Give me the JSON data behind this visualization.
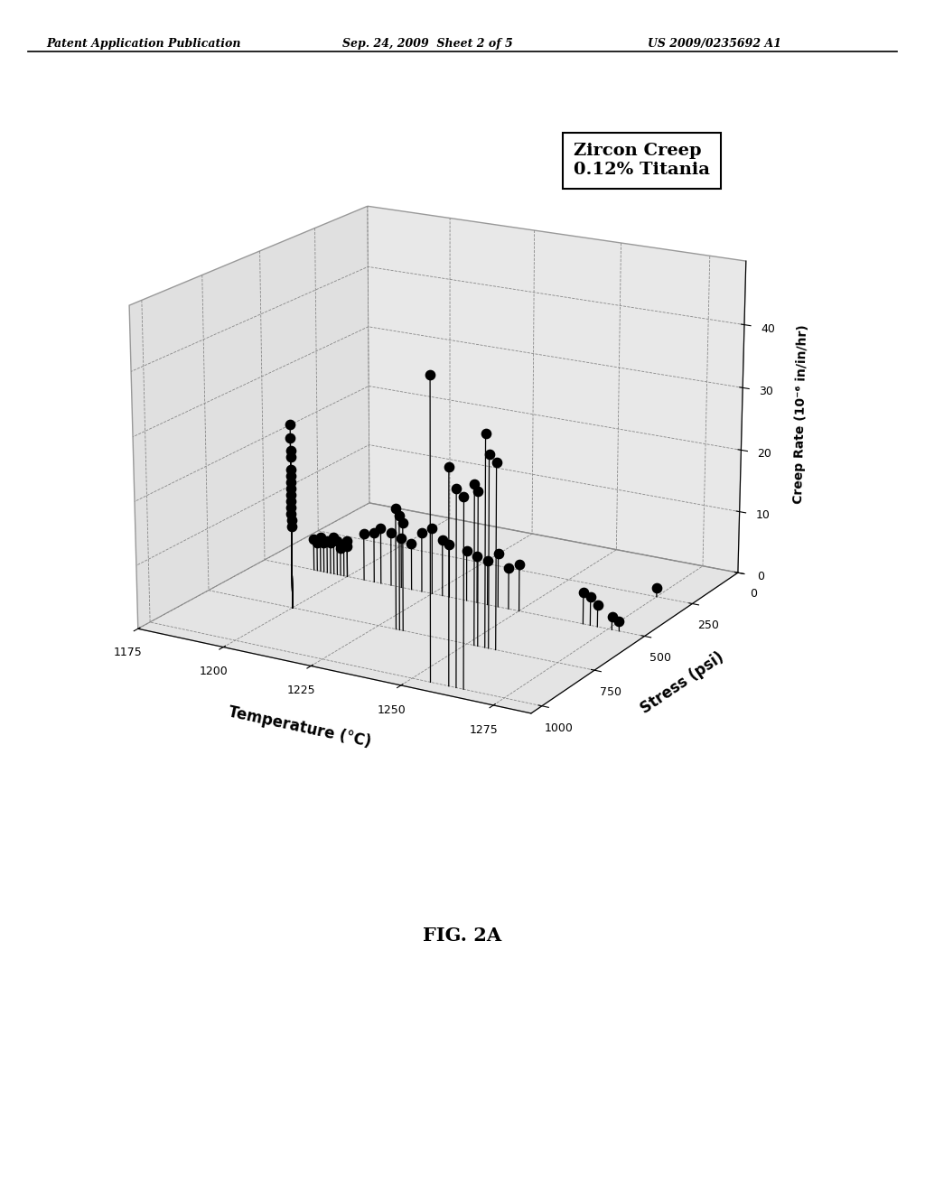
{
  "title": "Zircon Creep\n0.12% Titania",
  "xlabel": "Temperature (°C)",
  "ylabel": "Stress (psi)",
  "zlabel": "Creep Rate (10⁻⁶ in/in/hr)",
  "x_ticks": [
    1175,
    1200,
    1225,
    1250,
    1275
  ],
  "y_ticks": [
    0,
    250,
    500,
    750,
    1000
  ],
  "z_ticks": [
    0,
    10,
    20,
    30,
    40
  ],
  "xlim": [
    1175,
    1285
  ],
  "ylim": [
    0,
    1050
  ],
  "zlim": [
    0,
    50
  ],
  "data_points": [
    [
      1190,
      500,
      5.0
    ],
    [
      1191,
      500,
      4.5
    ],
    [
      1192,
      500,
      5.5
    ],
    [
      1193,
      500,
      4.8
    ],
    [
      1194,
      500,
      5.2
    ],
    [
      1195,
      500,
      5.0
    ],
    [
      1196,
      500,
      6.0
    ],
    [
      1197,
      500,
      5.5
    ],
    [
      1198,
      500,
      4.5
    ],
    [
      1199,
      500,
      5.0
    ],
    [
      1200,
      500,
      5.8
    ],
    [
      1200,
      500,
      5.0
    ],
    [
      1200,
      750,
      29.0
    ],
    [
      1200,
      750,
      27.0
    ],
    [
      1200,
      750,
      25.0
    ],
    [
      1200,
      750,
      24.0
    ],
    [
      1200,
      750,
      22.0
    ],
    [
      1200,
      750,
      21.0
    ],
    [
      1200,
      750,
      20.0
    ],
    [
      1200,
      750,
      19.0
    ],
    [
      1200,
      750,
      18.0
    ],
    [
      1200,
      750,
      17.0
    ],
    [
      1200,
      750,
      16.0
    ],
    [
      1200,
      750,
      15.0
    ],
    [
      1200,
      750,
      14.0
    ],
    [
      1200,
      750,
      13.0
    ],
    [
      1205,
      500,
      7.5
    ],
    [
      1208,
      500,
      8.0
    ],
    [
      1210,
      500,
      9.0
    ],
    [
      1213,
      500,
      8.5
    ],
    [
      1216,
      500,
      8.0
    ],
    [
      1219,
      500,
      7.5
    ],
    [
      1222,
      500,
      9.5
    ],
    [
      1225,
      500,
      10.5
    ],
    [
      1228,
      500,
      9.0
    ],
    [
      1230,
      500,
      8.5
    ],
    [
      1230,
      750,
      19.0
    ],
    [
      1231,
      750,
      18.0
    ],
    [
      1232,
      750,
      17.0
    ],
    [
      1235,
      500,
      8.0
    ],
    [
      1238,
      500,
      7.5
    ],
    [
      1241,
      500,
      7.0
    ],
    [
      1244,
      500,
      8.5
    ],
    [
      1247,
      500,
      6.5
    ],
    [
      1250,
      500,
      7.5
    ],
    [
      1252,
      750,
      25.0
    ],
    [
      1253,
      750,
      24.0
    ],
    [
      1255,
      1000,
      46.0
    ],
    [
      1255,
      750,
      33.0
    ],
    [
      1256,
      750,
      30.0
    ],
    [
      1258,
      750,
      29.0
    ],
    [
      1260,
      1000,
      33.0
    ],
    [
      1262,
      1000,
      30.0
    ],
    [
      1264,
      1000,
      29.0
    ],
    [
      1268,
      500,
      5.0
    ],
    [
      1270,
      500,
      4.5
    ],
    [
      1272,
      500,
      3.5
    ],
    [
      1275,
      250,
      1.5
    ],
    [
      1276,
      500,
      2.0
    ],
    [
      1278,
      500,
      1.5
    ]
  ],
  "background_color": "#ffffff",
  "dot_color": "#000000",
  "stem_color": "#000000",
  "pane_color_left": "#e0e0e0",
  "pane_color_right": "#e8e8e8",
  "pane_color_floor": "#e4e4e4",
  "figure_caption": "FIG. 2A",
  "header_left": "Patent Application Publication",
  "header_center": "Sep. 24, 2009  Sheet 2 of 5",
  "header_right": "US 2009/0235692 A1",
  "elev": 18,
  "azim": -60
}
